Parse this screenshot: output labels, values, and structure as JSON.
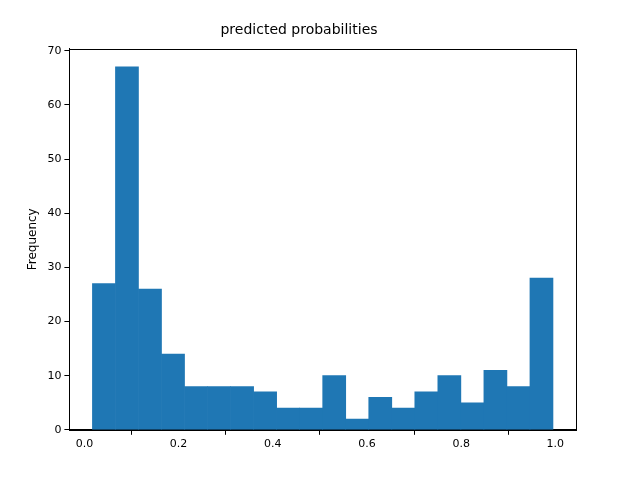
{
  "chart_data": {
    "type": "histogram",
    "title": "predicted probabilities",
    "y_label": "Frequency",
    "bins": [
      0.017,
      0.0659,
      0.1148,
      0.1637,
      0.2126,
      0.2615,
      0.3104,
      0.3593,
      0.4082,
      0.4571,
      0.506,
      0.5549,
      0.6038,
      0.6527,
      0.7016,
      0.7505,
      0.7994,
      0.8483,
      0.8972,
      0.9461,
      0.995
    ],
    "counts": [
      27,
      67,
      26,
      14,
      8,
      8,
      8,
      7,
      4,
      4,
      10,
      2,
      6,
      4,
      7,
      10,
      5,
      11,
      8,
      28
    ],
    "color": "#1f77b4",
    "xlim": [
      -0.0319,
      1.0439
    ],
    "xticks": [
      {
        "value": 0,
        "label": "0.0"
      },
      {
        "value": 0.2,
        "label": "0.2"
      },
      {
        "value": 0.4,
        "label": "0.4"
      },
      {
        "value": 0.6,
        "label": "0.6"
      },
      {
        "value": 0.8,
        "label": "0.8"
      },
      {
        "value": 1,
        "label": "1.0"
      }
    ],
    "ylim": [
      0,
      70.35
    ],
    "yticks": [
      0,
      10,
      20,
      30,
      40,
      50,
      60,
      70
    ],
    "grid": false
  }
}
